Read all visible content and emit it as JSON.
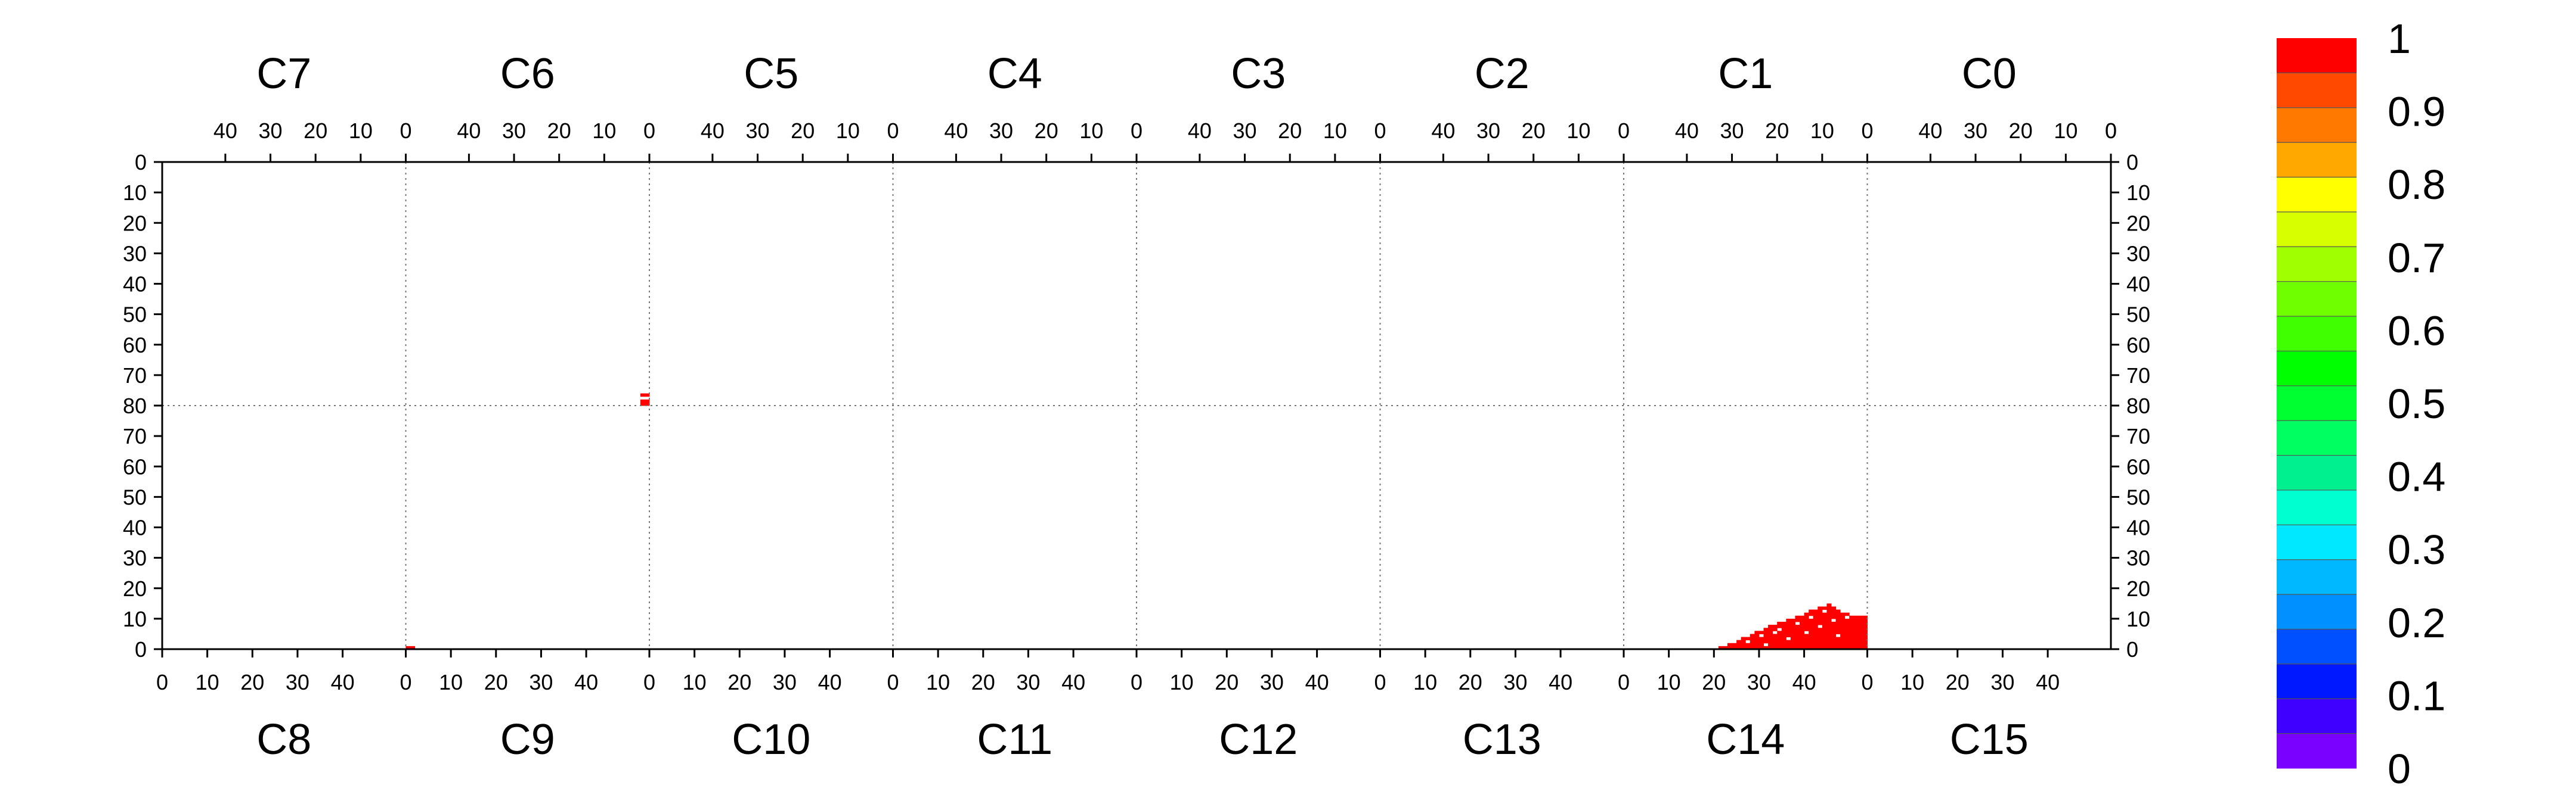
{
  "chart_data": {
    "type": "heatmap",
    "title": "",
    "xlabel": "",
    "ylabel": "",
    "grid": true,
    "top_sections": [
      "C7",
      "C6",
      "C5",
      "C4",
      "C3",
      "C2",
      "C1",
      "C0"
    ],
    "bottom_sections": [
      "C8",
      "C9",
      "C10",
      "C11",
      "C12",
      "C13",
      "C14",
      "C15"
    ],
    "top_x_ticks": [
      "40",
      "30",
      "20",
      "10",
      "0"
    ],
    "bottom_x_ticks": [
      "0",
      "10",
      "20",
      "30",
      "40"
    ],
    "y_ticks_top_half": [
      "0",
      "10",
      "20",
      "30",
      "40",
      "50",
      "60",
      "70",
      "80"
    ],
    "y_ticks_bottom_half": [
      "70",
      "60",
      "50",
      "40",
      "30",
      "20",
      "10",
      "0"
    ],
    "section_x_range": [
      0,
      54
    ],
    "y_range": [
      0,
      80
    ],
    "value_range": [
      0,
      1
    ],
    "colorbar": {
      "ticks": [
        "0",
        "0.1",
        "0.2",
        "0.3",
        "0.4",
        "0.5",
        "0.6",
        "0.7",
        "0.8",
        "0.9",
        "1"
      ],
      "colors": [
        "#7a00ff",
        "#4000ff",
        "#0018ff",
        "#0050ff",
        "#0090ff",
        "#00b8ff",
        "#00e8ff",
        "#00ffd0",
        "#00f090",
        "#00ff60",
        "#00ff30",
        "#00ff00",
        "#40ff00",
        "#70ff00",
        "#a0ff00",
        "#d8ff00",
        "#ffff00",
        "#ffa800",
        "#ff7800",
        "#ff4800",
        "#ff0000"
      ]
    },
    "cells": [
      {
        "section": "C6",
        "x": 0,
        "y": 78,
        "value": 1
      },
      {
        "section": "C6",
        "x": 1,
        "y": 78,
        "value": 1
      },
      {
        "section": "C6",
        "x": 0,
        "y": 79,
        "value": 1
      },
      {
        "section": "C6",
        "x": 1,
        "y": 79,
        "value": 1
      },
      {
        "section": "C6",
        "x": 0,
        "y": 76,
        "value": 1
      },
      {
        "section": "C6",
        "x": 1,
        "y": 76,
        "value": 1
      },
      {
        "section": "C9",
        "x": 0,
        "y": 0,
        "value": 1
      },
      {
        "section": "C9",
        "x": 1,
        "y": 0,
        "value": 1
      }
    ],
    "c14_profile": [
      {
        "x": 21,
        "h": 1
      },
      {
        "x": 22,
        "h": 1
      },
      {
        "x": 23,
        "h": 2
      },
      {
        "x": 24,
        "h": 2
      },
      {
        "x": 25,
        "h": 3
      },
      {
        "x": 26,
        "h": 4
      },
      {
        "x": 27,
        "h": 4
      },
      {
        "x": 28,
        "h": 5
      },
      {
        "x": 29,
        "h": 6
      },
      {
        "x": 30,
        "h": 6
      },
      {
        "x": 31,
        "h": 7
      },
      {
        "x": 32,
        "h": 8
      },
      {
        "x": 33,
        "h": 8
      },
      {
        "x": 34,
        "h": 9
      },
      {
        "x": 35,
        "h": 9
      },
      {
        "x": 36,
        "h": 10
      },
      {
        "x": 37,
        "h": 10
      },
      {
        "x": 38,
        "h": 11
      },
      {
        "x": 39,
        "h": 11
      },
      {
        "x": 40,
        "h": 12
      },
      {
        "x": 41,
        "h": 13
      },
      {
        "x": 42,
        "h": 13
      },
      {
        "x": 43,
        "h": 14
      },
      {
        "x": 44,
        "h": 14
      },
      {
        "x": 45,
        "h": 15
      },
      {
        "x": 46,
        "h": 14
      },
      {
        "x": 47,
        "h": 13
      },
      {
        "x": 48,
        "h": 12
      },
      {
        "x": 49,
        "h": 12
      },
      {
        "x": 50,
        "h": 11
      },
      {
        "x": 51,
        "h": 11
      },
      {
        "x": 52,
        "h": 11
      },
      {
        "x": 53,
        "h": 11
      }
    ],
    "c14_cell_value": 1,
    "c14_gaps": [
      {
        "x": 27,
        "y": 2
      },
      {
        "x": 30,
        "y": 4
      },
      {
        "x": 31,
        "y": 1
      },
      {
        "x": 34,
        "y": 6
      },
      {
        "x": 36,
        "y": 3
      },
      {
        "x": 38,
        "y": 8
      },
      {
        "x": 40,
        "y": 5
      },
      {
        "x": 41,
        "y": 10
      },
      {
        "x": 43,
        "y": 7
      },
      {
        "x": 44,
        "y": 12
      },
      {
        "x": 46,
        "y": 9
      },
      {
        "x": 47,
        "y": 4
      },
      {
        "x": 49,
        "y": 10
      },
      {
        "x": 33,
        "y": 5
      }
    ]
  }
}
